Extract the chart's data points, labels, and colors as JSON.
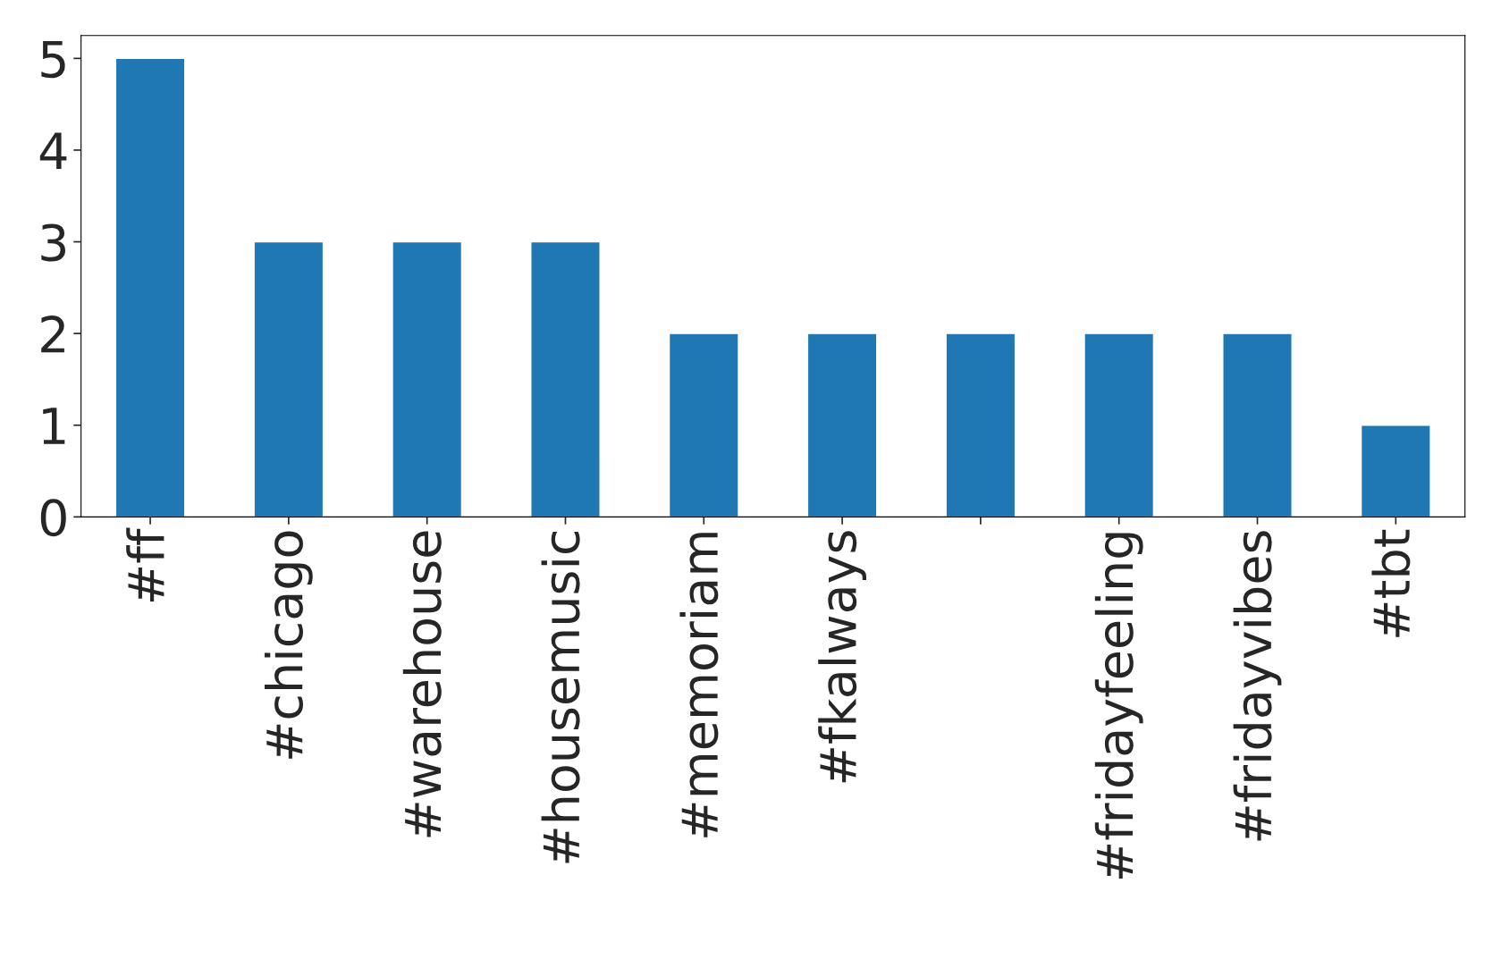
{
  "chart_data": {
    "type": "bar",
    "categories": [
      "#ff",
      "#chicago",
      "#warehouse",
      "#housemusic",
      "#memoriam",
      "#fkalways",
      null,
      "#fridayfeeling",
      "#fridayvibes",
      "#tbt"
    ],
    "values": [
      5,
      3,
      3,
      3,
      2,
      2,
      2,
      2,
      2,
      1
    ],
    "color": "#1f77b4",
    "ylim": [
      0,
      5.25
    ],
    "yticks": [
      0,
      1,
      2,
      3,
      4,
      5
    ],
    "grid": false,
    "legend": false
  }
}
